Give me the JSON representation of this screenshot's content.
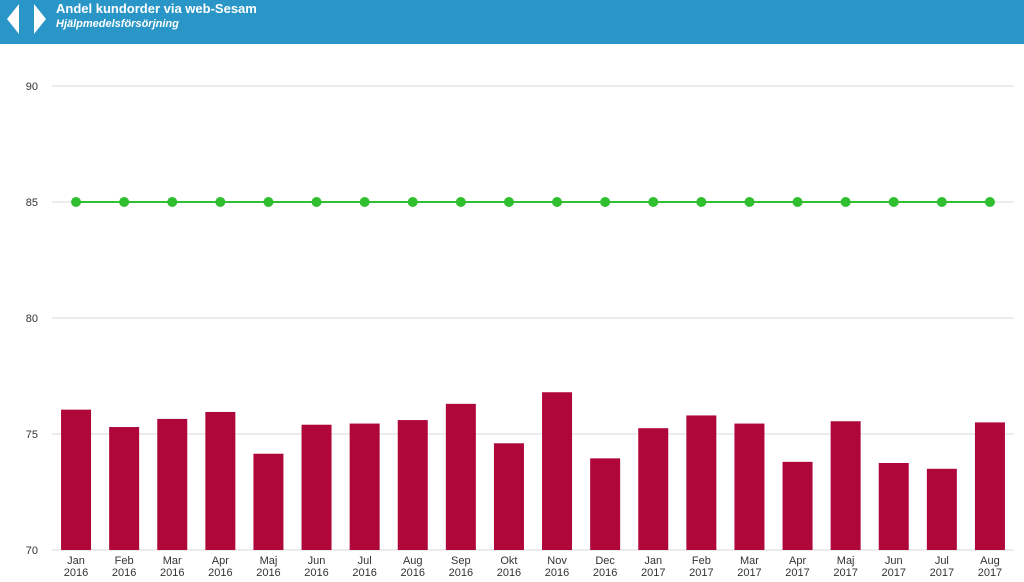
{
  "header": {
    "title": "Andel kundorder via web-Sesam",
    "subtitle": "Hjälpmedelsförsörjning",
    "prev_icon": "chevron-left-icon",
    "next_icon": "chevron-right-icon"
  },
  "colors": {
    "header_bg": "#2a96c8",
    "bar": "#b0073b",
    "target_line": "#2fbf2f",
    "grid": "#d9d9d9",
    "text": "#333333"
  },
  "chart_data": {
    "type": "bar",
    "title": "Andel kundorder via web-Sesam",
    "subtitle": "Hjälpmedelsförsörjning",
    "categories": [
      [
        "Jan",
        "2016"
      ],
      [
        "Feb",
        "2016"
      ],
      [
        "Mar",
        "2016"
      ],
      [
        "Apr",
        "2016"
      ],
      [
        "Maj",
        "2016"
      ],
      [
        "Jun",
        "2016"
      ],
      [
        "Jul",
        "2016"
      ],
      [
        "Aug",
        "2016"
      ],
      [
        "Sep",
        "2016"
      ],
      [
        "Okt",
        "2016"
      ],
      [
        "Nov",
        "2016"
      ],
      [
        "Dec",
        "2016"
      ],
      [
        "Jan",
        "2017"
      ],
      [
        "Feb",
        "2017"
      ],
      [
        "Mar",
        "2017"
      ],
      [
        "Apr",
        "2017"
      ],
      [
        "Maj",
        "2017"
      ],
      [
        "Jun",
        "2017"
      ],
      [
        "Jul",
        "2017"
      ],
      [
        "Aug",
        "2017"
      ]
    ],
    "series": [
      {
        "type": "bar",
        "values": [
          76.05,
          75.3,
          75.65,
          75.95,
          74.15,
          75.4,
          75.45,
          75.6,
          76.3,
          74.6,
          76.8,
          73.95,
          75.25,
          75.8,
          75.45,
          73.8,
          75.55,
          73.75,
          73.5,
          75.5
        ]
      },
      {
        "type": "line",
        "values": [
          85,
          85,
          85,
          85,
          85,
          85,
          85,
          85,
          85,
          85,
          85,
          85,
          85,
          85,
          85,
          85,
          85,
          85,
          85,
          85
        ]
      }
    ],
    "ylim": [
      70,
      90
    ],
    "yticks": [
      70,
      75,
      80,
      85,
      90
    ],
    "grid": true,
    "legend": "none"
  }
}
